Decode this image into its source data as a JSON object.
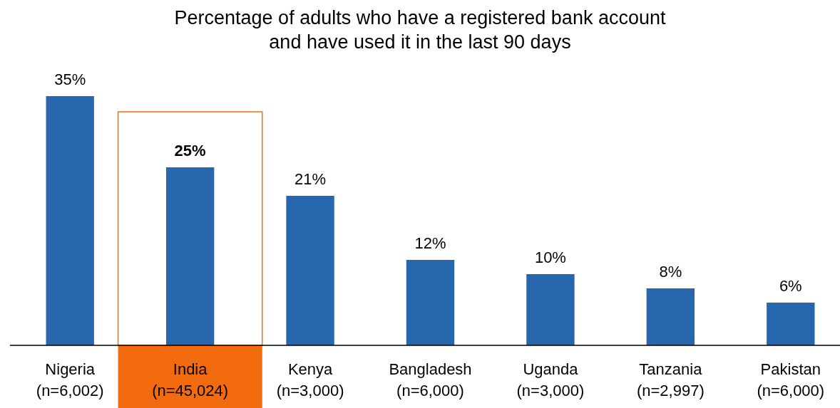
{
  "chart_data": {
    "type": "bar",
    "title": "Percentage of adults who have a registered bank account\nand have used it in the last 90 days",
    "categories": [
      "Nigeria\n(n=6,002)",
      "India\n(n=45,024)",
      "Kenya\n(n=3,000)",
      "Bangladesh\n(n=6,000)",
      "Uganda\n(n=3,000)",
      "Tanzania\n(n=2,997)",
      "Pakistan\n(n=6,000)"
    ],
    "values": [
      35,
      25,
      21,
      12,
      10,
      8,
      6
    ],
    "color": "#2866ad",
    "value_labels": [
      "35%",
      "25%",
      "21%",
      "12%",
      "10%",
      "8%",
      "6%"
    ]
  }
}
